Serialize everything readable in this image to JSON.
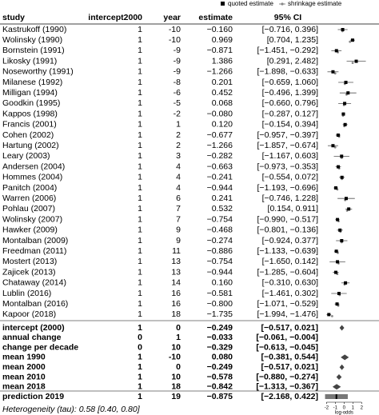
{
  "chart_data": {
    "type": "forest",
    "legend": {
      "quoted": "quoted estimate",
      "shrinkage": "shrinkage estimate"
    },
    "headers": [
      "study",
      "intercept2000",
      "year",
      "estimate",
      "95% CI"
    ],
    "xlabel": "log-odds",
    "xlim": [
      -2.4,
      3.8
    ],
    "xticks": [
      -2,
      -1,
      0,
      1,
      2
    ],
    "colors": {
      "quoted": "#000000",
      "shrinkage": "#888888",
      "ci": "#555555",
      "summary": "#444444",
      "prediction": "#777777"
    },
    "footnote": "Heterogeneity (tau): 0.58 [0.40, 0.80]",
    "studies": [
      {
        "study": "Kastrukoff (1990)",
        "intercept2000": 1,
        "year": -10,
        "estimate": -0.16,
        "estimate_label": "−0.160",
        "ci_low": -0.716,
        "ci_high": 0.396,
        "ci_label": "[−0.716, 0.396]",
        "shrinkage": -0.18
      },
      {
        "study": "Wolinsky (1990)",
        "intercept2000": 1,
        "year": -10,
        "estimate": 0.969,
        "estimate_label": "0.969",
        "ci_low": 0.704,
        "ci_high": 1.235,
        "ci_label": "[0.704, 1.235]",
        "shrinkage": 0.67
      },
      {
        "study": "Bornstein (1991)",
        "intercept2000": 1,
        "year": -9,
        "estimate": -0.871,
        "estimate_label": "−0.871",
        "ci_low": -1.451,
        "ci_high": -0.292,
        "ci_label": "[−1.451, −0.292]",
        "shrinkage": -0.71
      },
      {
        "study": "Likosky (1991)",
        "intercept2000": 1,
        "year": -9,
        "estimate": 1.386,
        "estimate_label": "1.386",
        "ci_low": 0.291,
        "ci_high": 2.482,
        "ci_label": "[0.291, 2.482]",
        "shrinkage": 0.98
      },
      {
        "study": "Noseworthy (1991)",
        "intercept2000": 1,
        "year": -9,
        "estimate": -1.266,
        "estimate_label": "−1.266",
        "ci_low": -1.898,
        "ci_high": -0.633,
        "ci_label": "[−1.898, −0.633]",
        "shrinkage": -1.01
      },
      {
        "study": "Milanese (1992)",
        "intercept2000": 1,
        "year": -8,
        "estimate": 0.201,
        "estimate_label": "0.201",
        "ci_low": -0.659,
        "ci_high": 1.06,
        "ci_label": "[−0.659, 1.060]",
        "shrinkage": 0.09
      },
      {
        "study": "Milligan (1994)",
        "intercept2000": 1,
        "year": -6,
        "estimate": 0.452,
        "estimate_label": "0.452",
        "ci_low": -0.496,
        "ci_high": 1.399,
        "ci_label": "[−0.496, 1.399]",
        "shrinkage": 0.28
      },
      {
        "study": "Goodkin (1995)",
        "intercept2000": 1,
        "year": -5,
        "estimate": 0.068,
        "estimate_label": "0.068",
        "ci_low": -0.66,
        "ci_high": 0.796,
        "ci_label": "[−0.660, 0.796]",
        "shrinkage": -0.01
      },
      {
        "study": "Kappos (1998)",
        "intercept2000": 1,
        "year": -2,
        "estimate": -0.08,
        "estimate_label": "−0.080",
        "ci_low": -0.287,
        "ci_high": 0.127,
        "ci_label": "[−0.287, 0.127]",
        "shrinkage": -0.12
      },
      {
        "study": "Francis (2001)",
        "intercept2000": 1,
        "year": 1,
        "estimate": 0.12,
        "estimate_label": "0.120",
        "ci_low": -0.154,
        "ci_high": 0.394,
        "ci_label": "[−0.154, 0.394]",
        "shrinkage": 0.03
      },
      {
        "study": "Cohen (2002)",
        "intercept2000": 1,
        "year": 2,
        "estimate": -0.677,
        "estimate_label": "−0.677",
        "ci_low": -0.957,
        "ci_high": -0.397,
        "ci_label": "[−0.957, −0.397]",
        "shrinkage": -0.57
      },
      {
        "study": "Hartung (2002)",
        "intercept2000": 1,
        "year": 2,
        "estimate": -1.266,
        "estimate_label": "−1.266",
        "ci_low": -1.857,
        "ci_high": -0.674,
        "ci_label": "[−1.857, −0.674]",
        "shrinkage": -1.01
      },
      {
        "study": "Leary (2003)",
        "intercept2000": 1,
        "year": 3,
        "estimate": -0.282,
        "estimate_label": "−0.282",
        "ci_low": -1.167,
        "ci_high": 0.603,
        "ci_label": "[−1.167, 0.603]",
        "shrinkage": -0.27
      },
      {
        "study": "Andersen (2004)",
        "intercept2000": 1,
        "year": 4,
        "estimate": -0.663,
        "estimate_label": "−0.663",
        "ci_low": -0.973,
        "ci_high": -0.353,
        "ci_label": "[−0.973, −0.353]",
        "shrinkage": -0.56
      },
      {
        "study": "Hommes (2004)",
        "intercept2000": 1,
        "year": 4,
        "estimate": -0.241,
        "estimate_label": "−0.241",
        "ci_low": -0.554,
        "ci_high": 0.072,
        "ci_label": "[−0.554, 0.072]",
        "shrinkage": -0.24
      },
      {
        "study": "Panitch (2004)",
        "intercept2000": 1,
        "year": 4,
        "estimate": -0.944,
        "estimate_label": "−0.944",
        "ci_low": -1.193,
        "ci_high": -0.696,
        "ci_label": "[−1.193, −0.696]",
        "shrinkage": -0.77
      },
      {
        "study": "Warren (2006)",
        "intercept2000": 1,
        "year": 6,
        "estimate": 0.241,
        "estimate_label": "0.241",
        "ci_low": -0.746,
        "ci_high": 1.228,
        "ci_label": "[−0.746, 1.228]",
        "shrinkage": 0.12
      },
      {
        "study": "Pohlau (2007)",
        "intercept2000": 1,
        "year": 7,
        "estimate": 0.532,
        "estimate_label": "0.532",
        "ci_low": 0.154,
        "ci_high": 0.911,
        "ci_label": "[0.154, 0.911]",
        "shrinkage": 0.34
      },
      {
        "study": "Wolinsky (2007)",
        "intercept2000": 1,
        "year": 7,
        "estimate": -0.754,
        "estimate_label": "−0.754",
        "ci_low": -0.99,
        "ci_high": -0.517,
        "ci_label": "[−0.990, −0.517]",
        "shrinkage": -0.63
      },
      {
        "study": "Hawker (2009)",
        "intercept2000": 1,
        "year": 9,
        "estimate": -0.468,
        "estimate_label": "−0.468",
        "ci_low": -0.801,
        "ci_high": -0.136,
        "ci_label": "[−0.801, −0.136]",
        "shrinkage": -0.41
      },
      {
        "study": "Montalban (2009)",
        "intercept2000": 1,
        "year": 9,
        "estimate": -0.274,
        "estimate_label": "−0.274",
        "ci_low": -0.924,
        "ci_high": 0.377,
        "ci_label": "[−0.924, 0.377]",
        "shrinkage": -0.27
      },
      {
        "study": "Freedman (2011)",
        "intercept2000": 1,
        "year": 11,
        "estimate": -0.886,
        "estimate_label": "−0.886",
        "ci_low": -1.133,
        "ci_high": -0.639,
        "ci_label": "[−1.133, −0.639]",
        "shrinkage": -0.72
      },
      {
        "study": "Mostert (2013)",
        "intercept2000": 1,
        "year": 13,
        "estimate": -0.754,
        "estimate_label": "−0.754",
        "ci_low": -1.65,
        "ci_high": 0.142,
        "ci_label": "[−1.650, 0.142]",
        "shrinkage": -0.63
      },
      {
        "study": "Zajicek (2013)",
        "intercept2000": 1,
        "year": 13,
        "estimate": -0.944,
        "estimate_label": "−0.944",
        "ci_low": -1.285,
        "ci_high": -0.604,
        "ci_label": "[−1.285, −0.604]",
        "shrinkage": -0.77
      },
      {
        "study": "Chataway (2014)",
        "intercept2000": 1,
        "year": 14,
        "estimate": 0.16,
        "estimate_label": "0.160",
        "ci_low": -0.31,
        "ci_high": 0.63,
        "ci_label": "[−0.310, 0.630]",
        "shrinkage": 0.06
      },
      {
        "study": "Lublin (2016)",
        "intercept2000": 1,
        "year": 16,
        "estimate": -0.581,
        "estimate_label": "−0.581",
        "ci_low": -1.461,
        "ci_high": 0.302,
        "ci_label": "[−1.461, 0.302]",
        "shrinkage": -0.5
      },
      {
        "study": "Montalban (2016)",
        "intercept2000": 1,
        "year": 16,
        "estimate": -0.8,
        "estimate_label": "−0.800",
        "ci_low": -1.071,
        "ci_high": -0.529,
        "ci_label": "[−1.071, −0.529]",
        "shrinkage": -0.66
      },
      {
        "study": "Kapoor (2018)",
        "intercept2000": 1,
        "year": 18,
        "estimate": -1.735,
        "estimate_label": "−1.735",
        "ci_low": -1.994,
        "ci_high": -1.476,
        "ci_label": "[−1.994, −1.476]",
        "shrinkage": -1.36
      }
    ],
    "summaries": [
      {
        "study": "intercept (2000)",
        "intercept2000": 1,
        "year": 0,
        "estimate": -0.249,
        "estimate_label": "−0.249",
        "ci_low": -0.517,
        "ci_high": 0.021,
        "ci_label": "[−0.517, 0.021]"
      },
      {
        "study": "annual change",
        "intercept2000": 0,
        "year": 1,
        "estimate": -0.033,
        "estimate_label": "−0.033",
        "ci_low": -0.061,
        "ci_high": -0.004,
        "ci_label": "[−0.061, −0.004]"
      },
      {
        "study": "change per decade",
        "intercept2000": 0,
        "year": 10,
        "estimate": -0.329,
        "estimate_label": "−0.329",
        "ci_low": -0.613,
        "ci_high": -0.045,
        "ci_label": "[−0.613, −0.045]"
      },
      {
        "study": "mean 1990",
        "intercept2000": 1,
        "year": -10,
        "estimate": 0.08,
        "estimate_label": "0.080",
        "ci_low": -0.381,
        "ci_high": 0.544,
        "ci_label": "[−0.381, 0.544]"
      },
      {
        "study": "mean 2000",
        "intercept2000": 1,
        "year": 0,
        "estimate": -0.249,
        "estimate_label": "−0.249",
        "ci_low": -0.517,
        "ci_high": 0.021,
        "ci_label": "[−0.517, 0.021]"
      },
      {
        "study": "mean 2010",
        "intercept2000": 1,
        "year": 10,
        "estimate": -0.578,
        "estimate_label": "−0.578",
        "ci_low": -0.88,
        "ci_high": -0.274,
        "ci_label": "[−0.880, −0.274]"
      },
      {
        "study": "mean 2018",
        "intercept2000": 1,
        "year": 18,
        "estimate": -0.842,
        "estimate_label": "−0.842",
        "ci_low": -1.313,
        "ci_high": -0.367,
        "ci_label": "[−1.313, −0.367]"
      }
    ],
    "prediction": {
      "study": "prediction 2019",
      "intercept2000": 1,
      "year": 19,
      "estimate": -0.875,
      "estimate_label": "−0.875",
      "ci_low": -2.168,
      "ci_high": 0.422,
      "ci_label": "[−2.168, 0.422]"
    }
  }
}
